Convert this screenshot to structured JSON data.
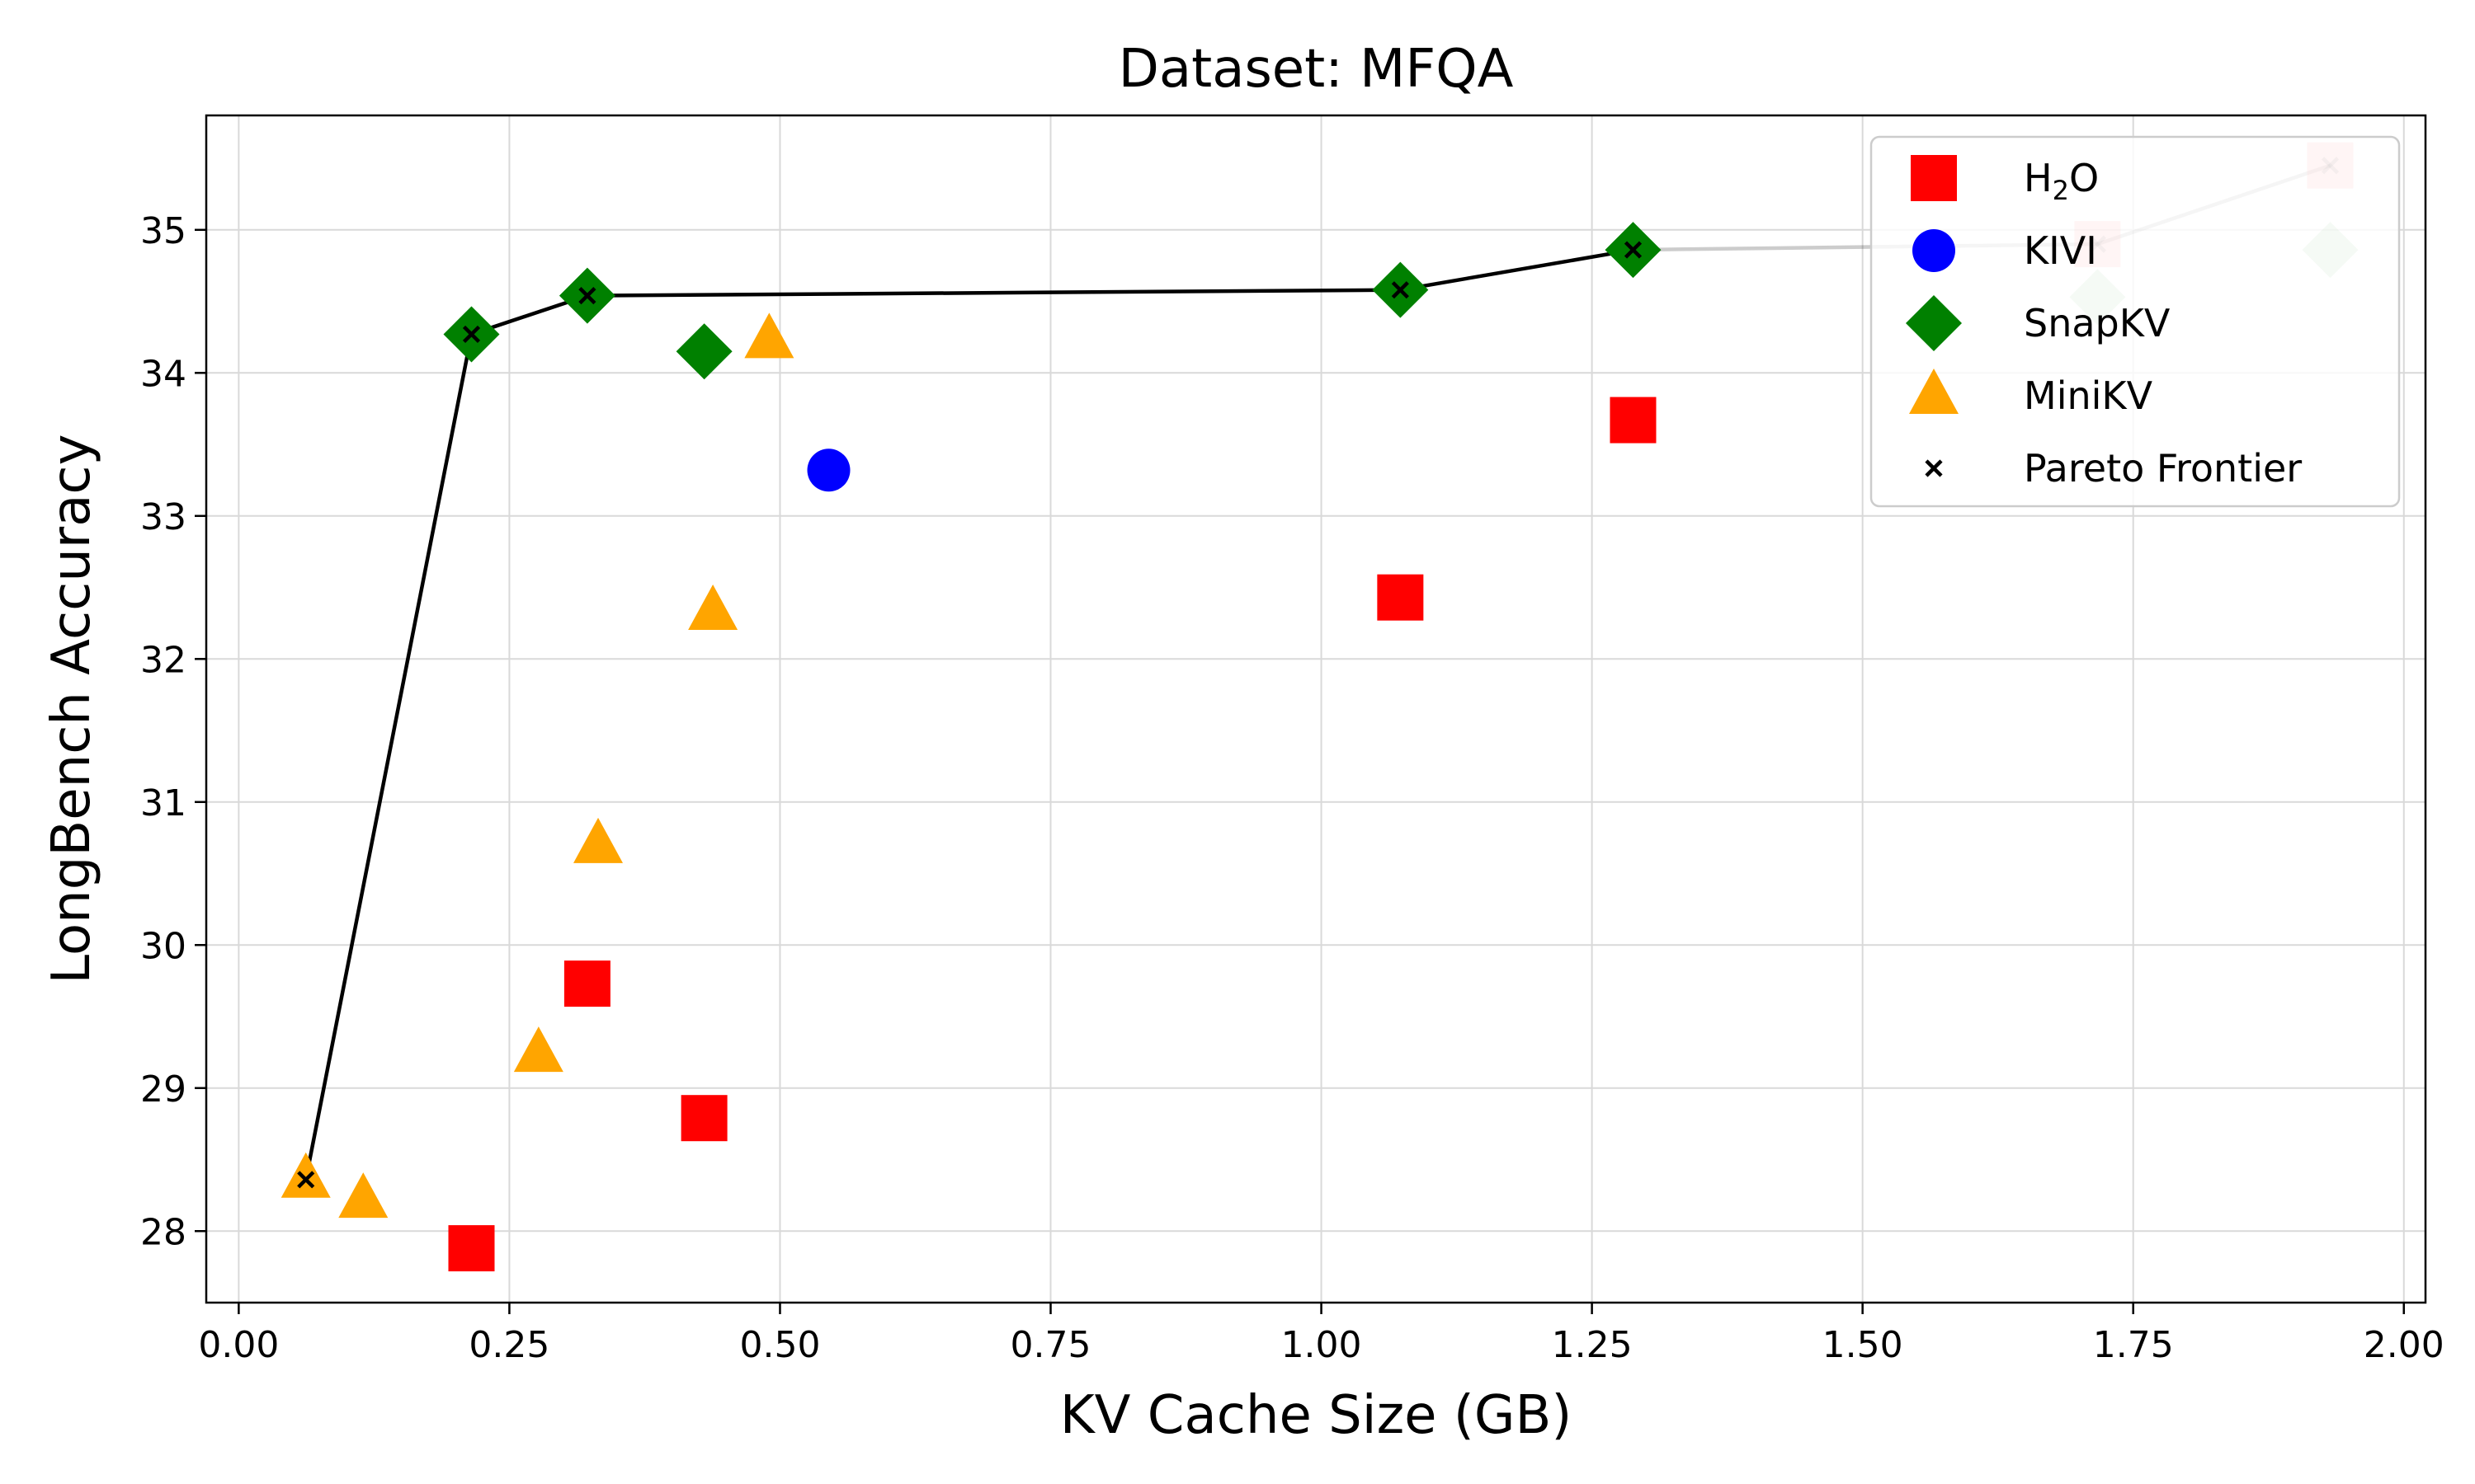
{
  "chart_data": {
    "type": "scatter",
    "title": "Dataset: MFQA",
    "xlabel": "KV Cache Size (GB)",
    "ylabel": "LongBench Accuracy",
    "xlim": [
      -0.03,
      2.02
    ],
    "ylim": [
      27.5,
      35.8
    ],
    "xticks": [
      0.0,
      0.25,
      0.5,
      0.75,
      1.0,
      1.25,
      1.5,
      1.75,
      2.0
    ],
    "xtick_labels": [
      "0.00",
      "0.25",
      "0.50",
      "0.75",
      "1.00",
      "1.25",
      "1.50",
      "1.75",
      "2.00"
    ],
    "yticks": [
      28,
      29,
      30,
      31,
      32,
      33,
      34,
      35
    ],
    "ytick_labels": [
      "28",
      "29",
      "30",
      "31",
      "32",
      "33",
      "34",
      "35"
    ],
    "grid": true,
    "legend_position": "top-right",
    "series": [
      {
        "name": "H2O",
        "legend_main": "H",
        "legend_sub": "2",
        "legend_tail": "O",
        "marker": "square",
        "color": "#ff0000",
        "points": [
          {
            "x": 0.215,
            "y": 27.88
          },
          {
            "x": 0.322,
            "y": 29.73
          },
          {
            "x": 0.43,
            "y": 28.79
          },
          {
            "x": 1.073,
            "y": 32.43
          },
          {
            "x": 1.288,
            "y": 33.67
          },
          {
            "x": 1.717,
            "y": 34.9,
            "faded": true
          },
          {
            "x": 1.932,
            "y": 35.45,
            "faded": true
          }
        ]
      },
      {
        "name": "KIVI",
        "marker": "circle",
        "color": "#0000ff",
        "points": [
          {
            "x": 0.545,
            "y": 33.32
          }
        ]
      },
      {
        "name": "SnapKV",
        "marker": "diamond",
        "color": "#008000",
        "points": [
          {
            "x": 0.215,
            "y": 34.27
          },
          {
            "x": 0.322,
            "y": 34.54
          },
          {
            "x": 0.43,
            "y": 34.15
          },
          {
            "x": 1.073,
            "y": 34.58
          },
          {
            "x": 1.288,
            "y": 34.86
          },
          {
            "x": 1.717,
            "y": 34.53,
            "faded": true
          },
          {
            "x": 1.932,
            "y": 34.86,
            "faded": true
          }
        ]
      },
      {
        "name": "MiniKV",
        "marker": "triangle",
        "color": "#ffa500",
        "points": [
          {
            "x": 0.062,
            "y": 28.36
          },
          {
            "x": 0.115,
            "y": 28.22
          },
          {
            "x": 0.277,
            "y": 29.24
          },
          {
            "x": 0.332,
            "y": 30.7
          },
          {
            "x": 0.438,
            "y": 32.33
          },
          {
            "x": 0.49,
            "y": 34.23
          }
        ]
      }
    ],
    "pareto_frontier": {
      "name": "Pareto Frontier",
      "marker": "x",
      "color": "#000000",
      "points": [
        {
          "x": 0.062,
          "y": 28.36
        },
        {
          "x": 0.215,
          "y": 34.27
        },
        {
          "x": 0.322,
          "y": 34.54
        },
        {
          "x": 1.073,
          "y": 34.58
        },
        {
          "x": 1.288,
          "y": 34.86
        },
        {
          "x": 1.717,
          "y": 34.9
        },
        {
          "x": 1.932,
          "y": 35.45
        }
      ]
    }
  }
}
